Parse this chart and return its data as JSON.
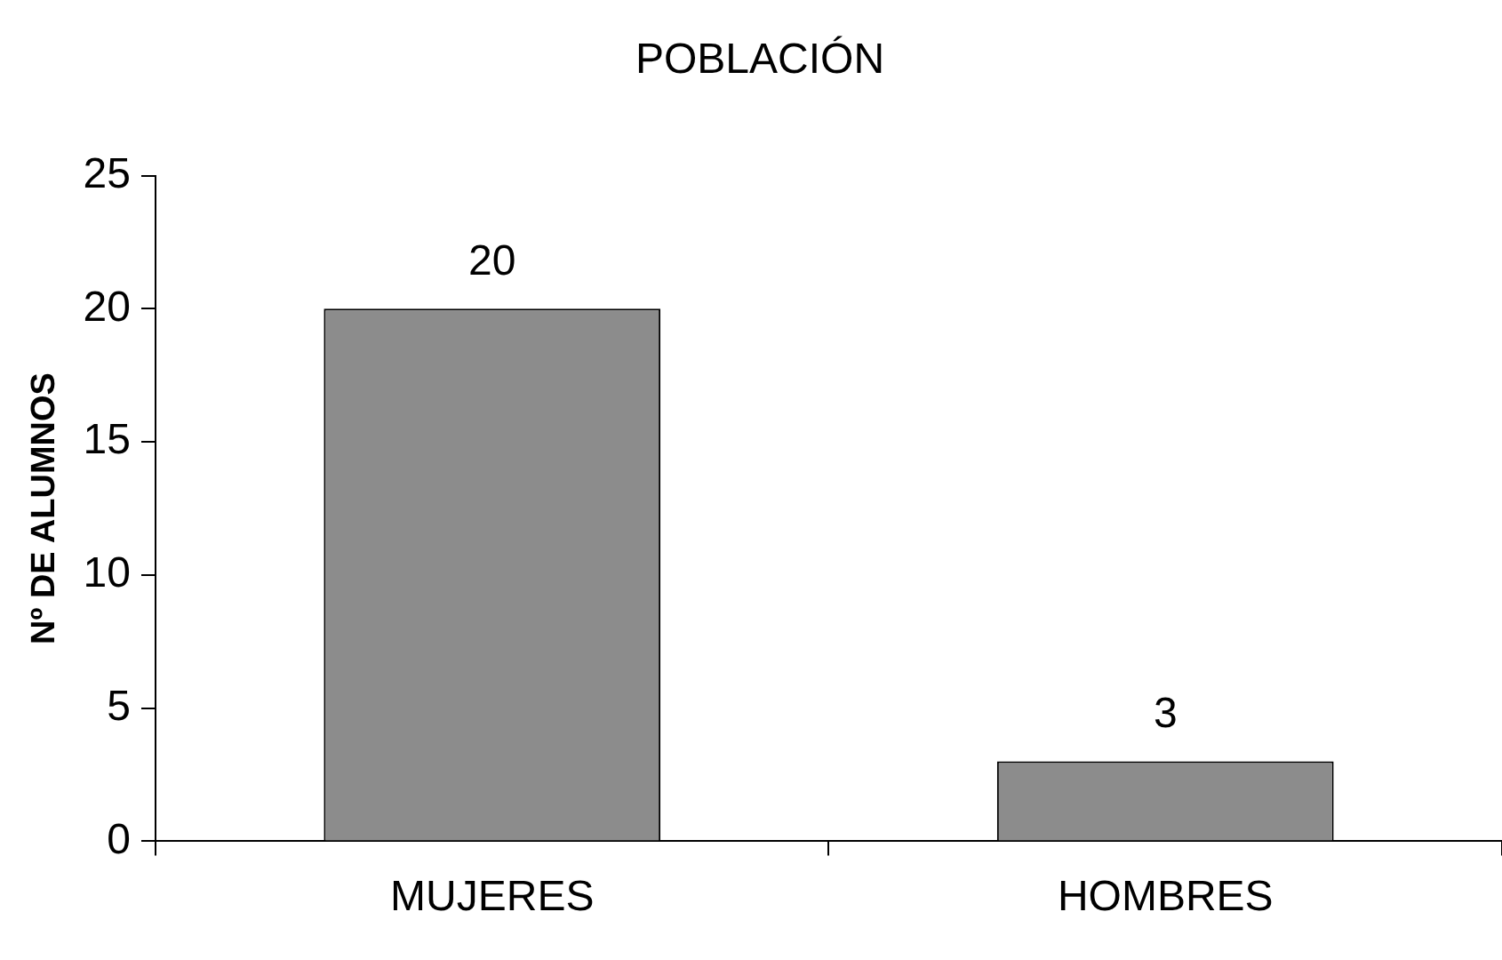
{
  "chart_data": {
    "type": "bar",
    "title": "POBLACIÓN",
    "ylabel": "Nº DE ALUMNOS",
    "categories": [
      "MUJERES",
      "HOMBRES"
    ],
    "values": [
      20,
      3
    ],
    "color": "#8c8c8c",
    "ylim": [
      0,
      25
    ],
    "yticks": [
      0,
      5,
      10,
      15,
      20,
      25
    ],
    "grid": false,
    "legend": false,
    "data_labels": true
  }
}
